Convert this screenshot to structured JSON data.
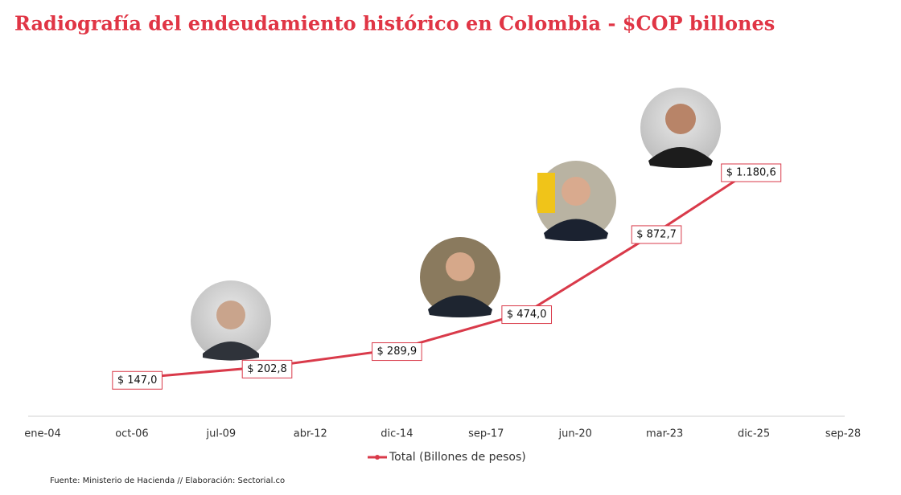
{
  "chart_data": {
    "type": "line",
    "title": "Radiografía del endeudamiento histórico en Colombia - $COP billones",
    "x": [
      "2006-12",
      "2010-12",
      "2014-12",
      "2018-12",
      "2022-12",
      "2025-11"
    ],
    "series": [
      {
        "name": "Total (Billones de pesos)",
        "color": "#d93a4a",
        "values": [
          147.0,
          202.8,
          289.9,
          474.0,
          872.7,
          1180.6
        ],
        "value_labels": [
          "$ 147,0",
          "$ 202,8",
          "$ 289,9",
          "$ 474,0",
          "$ 872,7",
          "$ 1.180,6"
        ]
      }
    ],
    "xlim": [
      "2004-01",
      "2028-09"
    ],
    "xticks": [
      {
        "value": "2004-01",
        "label": "ene-04"
      },
      {
        "value": "2006-10",
        "label": "oct-06"
      },
      {
        "value": "2009-07",
        "label": "jul-09"
      },
      {
        "value": "2012-04",
        "label": "abr-12"
      },
      {
        "value": "2014-12",
        "label": "dic-14"
      },
      {
        "value": "2017-09",
        "label": "sep-17"
      },
      {
        "value": "2020-06",
        "label": "jun-20"
      },
      {
        "value": "2023-03",
        "label": "mar-23"
      },
      {
        "value": "2025-12",
        "label": "dic-25"
      },
      {
        "value": "2028-09",
        "label": "sep-28"
      }
    ],
    "legend": "bottom",
    "source": "Fuente: Ministerio de Hacienda // Elaboración: Sectorial.co"
  }
}
